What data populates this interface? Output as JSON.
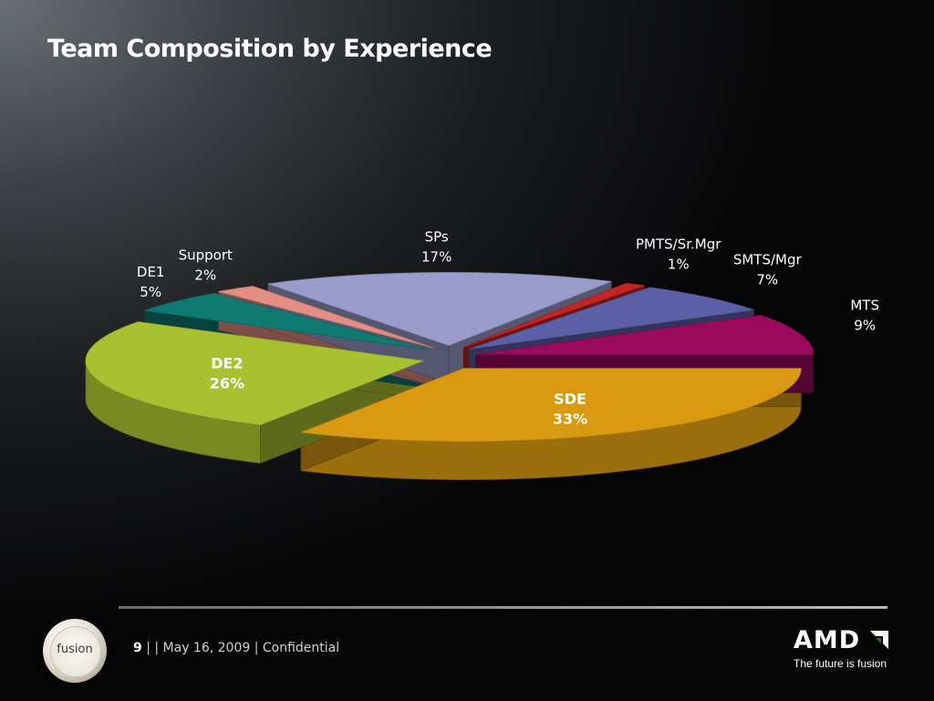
{
  "slide": {
    "title": "Team Composition by Experience",
    "footer": {
      "page": "9",
      "text": " |  | May 16, 2009 | Confidential"
    },
    "logos": {
      "fusion": "fusion",
      "amd": "AMD",
      "tagline": "The future is fusion"
    }
  },
  "chart_data": {
    "type": "pie",
    "style": "3d-exploded",
    "title": "",
    "slices": [
      {
        "label": "SDE",
        "value": 33,
        "pct_label": "33%",
        "color": "#d99a12",
        "label_inside": true
      },
      {
        "label": "DE2",
        "value": 26,
        "pct_label": "26%",
        "color": "#a9c031",
        "label_inside": true
      },
      {
        "label": "DE1",
        "value": 5,
        "pct_label": "5%",
        "color": "#0f7a72",
        "label_inside": false
      },
      {
        "label": "Support",
        "value": 2,
        "pct_label": "2%",
        "color": "#e48d83",
        "label_inside": false
      },
      {
        "label": "SPs",
        "value": 17,
        "pct_label": "17%",
        "color": "#9a9ccc",
        "label_inside": false
      },
      {
        "label": "PMTS/Sr.Mgr",
        "value": 1,
        "pct_label": "1%",
        "color": "#c42424",
        "label_inside": false
      },
      {
        "label": "SMTS/Mgr",
        "value": 7,
        "pct_label": "7%",
        "color": "#5a5fa6",
        "label_inside": false
      },
      {
        "label": "MTS",
        "value": 9,
        "pct_label": "9%",
        "color": "#9c0a5e",
        "label_inside": false
      }
    ]
  }
}
